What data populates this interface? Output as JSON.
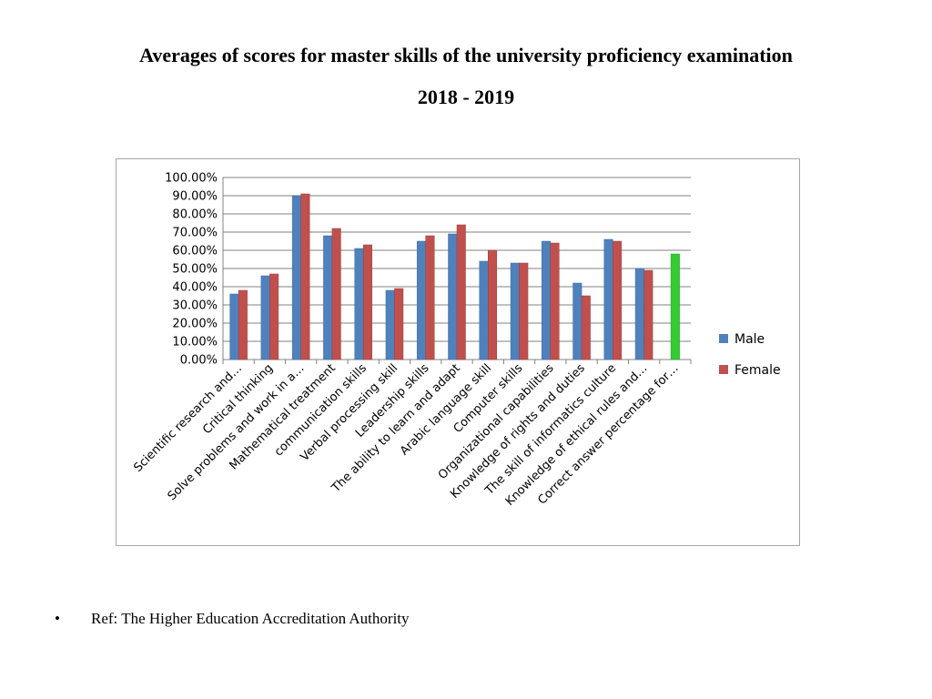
{
  "title": {
    "line1": "Averages of scores for master skills of the university proficiency examination",
    "line2": "2018 - 2019"
  },
  "reference": {
    "bullet": "•",
    "text": "Ref: The Higher Education Accreditation Authority"
  },
  "colors": {
    "male": "#4f81bd",
    "female": "#c0504d",
    "correct": "#33cc33",
    "grid": "#808080"
  },
  "chart_data": {
    "type": "bar",
    "title": "",
    "xlabel": "",
    "ylabel": "",
    "ylim": [
      0,
      100
    ],
    "y_ticks": [
      "0.00%",
      "10.00%",
      "20.00%",
      "30.00%",
      "40.00%",
      "50.00%",
      "60.00%",
      "70.00%",
      "80.00%",
      "90.00%",
      "100.00%"
    ],
    "grid": true,
    "legend_position": "right",
    "categories": [
      "Scientific research and…",
      "Critical thinking",
      "Solve problems and work in a…",
      "Mathematical treatment",
      "communication skills",
      "Verbal processing skill",
      "Leadership skills",
      "The ability to learn and adapt",
      "Arabic language skill",
      "Computer skills",
      "Organizational capabilities",
      "Knowledge of rights and duties",
      "The skill of informatics culture",
      "Knowledge of ethical rules and…",
      "Correct answer percentage for…"
    ],
    "series": [
      {
        "name": "Male",
        "values": [
          36,
          46,
          90,
          68,
          61,
          38,
          65,
          69,
          54,
          53,
          65,
          42,
          66,
          50,
          null
        ]
      },
      {
        "name": "Female",
        "values": [
          38,
          47,
          91,
          72,
          63,
          39,
          68,
          74,
          60,
          53,
          64,
          35,
          65,
          49,
          null
        ]
      }
    ],
    "single_bars": [
      {
        "category_index": 14,
        "value": 58
      }
    ]
  }
}
